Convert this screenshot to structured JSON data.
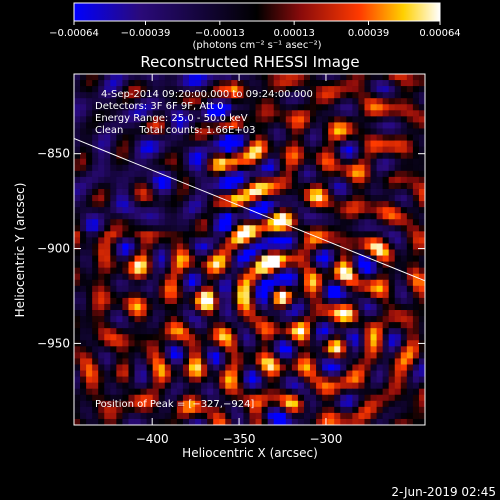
{
  "chart_data": {
    "type": "heatmap",
    "title": "Reconstructed RHESSI Image",
    "xlabel": "Heliocentric X (arcsec)",
    "ylabel": "Heliocentric Y (arcsec)",
    "xlim": [
      -445,
      -243
    ],
    "ylim": [
      -993,
      -808
    ],
    "x_ticks": [
      -400,
      -350,
      -300
    ],
    "x_tick_labels": [
      "−400",
      "−350",
      "−300"
    ],
    "y_ticks": [
      -850,
      -900,
      -950
    ],
    "y_tick_labels": [
      "−850",
      "−900",
      "−950"
    ],
    "colorbar": {
      "range": [
        -0.00064,
        0.00064
      ],
      "ticks": [
        -0.00064,
        -0.00039,
        -0.00013,
        0.00013,
        0.00039,
        0.00064
      ],
      "tick_labels": [
        "−0.00064",
        "−0.00039",
        "−0.00013",
        "0.00013",
        "0.00039",
        "0.00064"
      ],
      "unit_label": "(photons cm⁻² s⁻¹ asec⁻²)",
      "colors": [
        "#0000ff",
        "#2a0a7a",
        "#000000",
        "#8a0b0b",
        "#ff3a00",
        "#ffd000",
        "#ffffff"
      ]
    },
    "annotations": [
      "4-Sep-2014 09:20:00.000 to 09:24:00.000",
      "Detectors: 3F 6F 9F, Att 0",
      "Energy Range: 25.0 - 50.0 keV",
      "Clean     Total counts: 1.66E+03"
    ],
    "peak_label": "Position of Peak = [−327,−924]",
    "peak_position": [
      -327,
      -924
    ],
    "limb_line": {
      "x": [
        -445,
        -243
      ],
      "y": [
        -842,
        -917
      ]
    },
    "grid": false
  },
  "footer": {
    "timestamp": "2-Jun-2019 02:45"
  }
}
